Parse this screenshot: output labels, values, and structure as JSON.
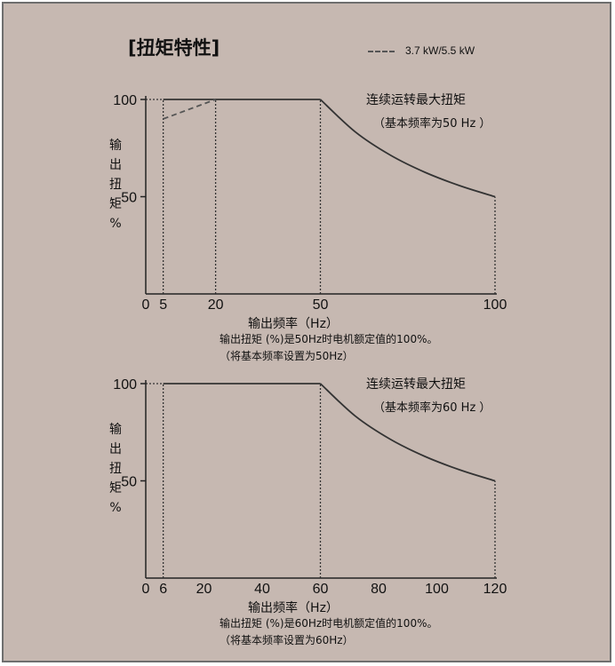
{
  "title": "[扭矩特性]",
  "legend": {
    "label": "3.7 kW/5.5 kW",
    "style": "dashed",
    "color": "#555555"
  },
  "chart_data": [
    {
      "type": "line",
      "ylabel": "输出扭矩（%）",
      "xlabel": "输出频率（Hz）",
      "x_ticks": [
        0,
        5,
        20,
        50,
        100
      ],
      "y_ticks": [
        50,
        100
      ],
      "xlim": [
        0,
        100
      ],
      "ylim": [
        0,
        100
      ],
      "grid": false,
      "annotation": [
        "连续运转最大扭矩",
        "（基本频率为50 Hz ）"
      ],
      "notes": [
        "输出扭矩 (%)是50Hz时电机额定值的100%。",
        "（将基本频率设置为50Hz）"
      ],
      "series": [
        {
          "style": "solid",
          "x": [
            5,
            50
          ],
          "y": [
            100,
            100
          ]
        },
        {
          "style": "solid",
          "x": [
            50,
            60,
            70,
            80,
            90,
            100
          ],
          "y": [
            100,
            83.3,
            71.4,
            62.5,
            55.6,
            50
          ]
        },
        {
          "name": "3.7 kW/5.5 kW",
          "style": "dashed",
          "x": [
            5,
            20
          ],
          "y": [
            90,
            100
          ]
        }
      ],
      "vlines": [
        {
          "x": 5,
          "from": 0,
          "to": 100
        },
        {
          "x": 20,
          "from": 0,
          "to": 100
        },
        {
          "x": 50,
          "from": 0,
          "to": 100
        },
        {
          "x": 100,
          "from": 0,
          "to": 50
        }
      ]
    },
    {
      "type": "line",
      "ylabel": "输出扭矩%",
      "xlabel": "输出频率（Hz）",
      "x_ticks": [
        0,
        6,
        20,
        40,
        60,
        80,
        100,
        120
      ],
      "y_ticks": [
        50,
        100
      ],
      "xlim": [
        0,
        120
      ],
      "ylim": [
        0,
        100
      ],
      "grid": false,
      "annotation": [
        "连续运转最大扭矩",
        "（基本频率为60 Hz ）"
      ],
      "notes": [
        "输出扭矩 (%)是60Hz时电机额定值的100%。",
        "（将基本频率设置为60Hz）"
      ],
      "series": [
        {
          "style": "solid",
          "x": [
            6,
            60
          ],
          "y": [
            100,
            100
          ]
        },
        {
          "style": "solid",
          "x": [
            60,
            72,
            84,
            96,
            108,
            120
          ],
          "y": [
            100,
            83.3,
            71.4,
            62.5,
            55.6,
            50
          ]
        }
      ],
      "vlines": [
        {
          "x": 6,
          "from": 0,
          "to": 100
        },
        {
          "x": 60,
          "from": 0,
          "to": 100
        },
        {
          "x": 120,
          "from": 0,
          "to": 50
        }
      ]
    }
  ]
}
